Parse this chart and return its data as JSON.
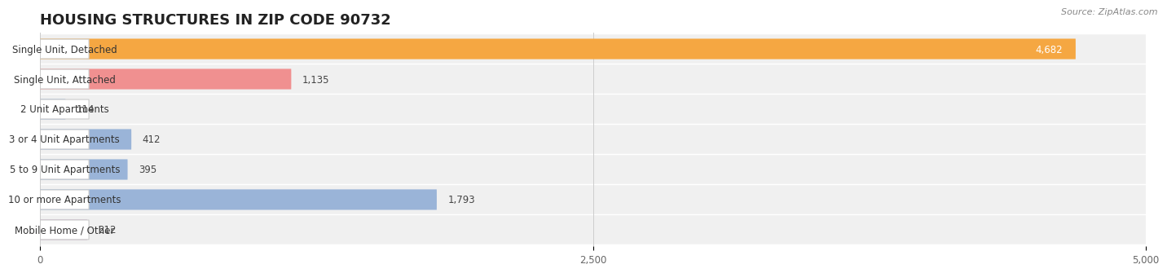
{
  "title": "HOUSING STRUCTURES IN ZIP CODE 90732",
  "source": "Source: ZipAtlas.com",
  "categories": [
    "Single Unit, Detached",
    "Single Unit, Attached",
    "2 Unit Apartments",
    "3 or 4 Unit Apartments",
    "5 to 9 Unit Apartments",
    "10 or more Apartments",
    "Mobile Home / Other"
  ],
  "values": [
    4682,
    1135,
    114,
    412,
    395,
    1793,
    212
  ],
  "bar_colors": [
    "#f5a742",
    "#f09090",
    "#9ab4d8",
    "#9ab4d8",
    "#9ab4d8",
    "#9ab4d8",
    "#c9afc9"
  ],
  "background_color": "#ffffff",
  "row_bg_even": "#f2f2f2",
  "row_bg_odd": "#e8e8e8",
  "xlim": [
    0,
    5000
  ],
  "xticks": [
    0,
    2500,
    5000
  ],
  "title_fontsize": 13,
  "label_fontsize": 8.5,
  "value_fontsize": 8.5
}
